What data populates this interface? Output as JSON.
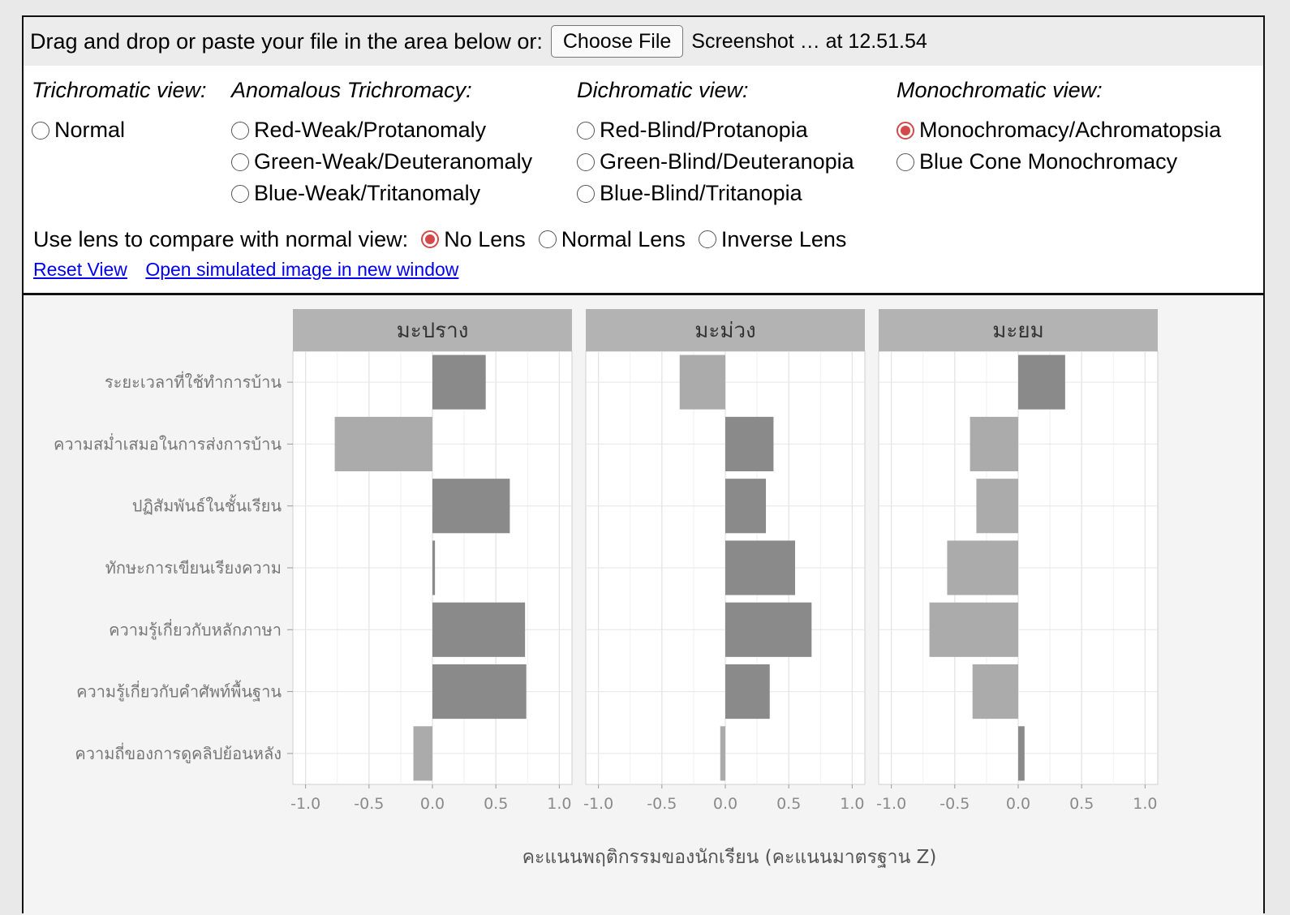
{
  "upload": {
    "prompt": "Drag and drop or paste your file in the area below or:",
    "button_label": "Choose File",
    "file_name": "Screenshot … at 12.51.54"
  },
  "views": {
    "trichromatic": {
      "title": "Trichromatic view:",
      "options": [
        "Normal"
      ]
    },
    "anomalous": {
      "title": "Anomalous Trichromacy:",
      "options": [
        "Red-Weak/Protanomaly",
        "Green-Weak/Deuteranomaly",
        "Blue-Weak/Tritanomaly"
      ]
    },
    "dichromatic": {
      "title": "Dichromatic view:",
      "options": [
        "Red-Blind/Protanopia",
        "Green-Blind/Deuteranopia",
        "Blue-Blind/Tritanopia"
      ]
    },
    "monochromatic": {
      "title": "Monochromatic view:",
      "options": [
        "Monochromacy/Achromatopsia",
        "Blue Cone Monochromacy"
      ]
    },
    "selected": "Monochromacy/Achromatopsia"
  },
  "lens": {
    "label": "Use lens to compare with normal view:",
    "options": [
      "No Lens",
      "Normal Lens",
      "Inverse Lens"
    ],
    "selected": "No Lens"
  },
  "links": {
    "reset": "Reset View",
    "open_window": "Open simulated image in new window"
  },
  "colors": {
    "radio_selected": "#d24a4a",
    "link": "#0000ee",
    "bar_positive": "#8a8a8a",
    "bar_negative": "#ababab",
    "strip": "#b3b3b3"
  },
  "chart_data": {
    "type": "bar",
    "orientation": "horizontal",
    "xlabel": "คะแนนพฤติกรรมของนักเรียน (คะแนนมาตรฐาน Z)",
    "xlim": [
      -1.1,
      1.1
    ],
    "xticks": [
      "-1.0",
      "-0.5",
      "0.0",
      "0.5",
      "1.0"
    ],
    "categories": [
      "ระยะเวลาที่ใช้ทำการบ้าน",
      "ความสม่ำเสมอในการส่งการบ้าน",
      "ปฏิสัมพันธ์ในชั้นเรียน",
      "ทักษะการเขียนเรียงความ",
      "ความรู้เกี่ยวกับหลักภาษา",
      "ความรู้เกี่ยวกับคำศัพท์พื้นฐาน",
      "ความถี่ของการดูคลิปย้อนหลัง"
    ],
    "panels": [
      {
        "name": "มะปราง",
        "values": [
          0.42,
          -0.77,
          0.61,
          0.02,
          0.73,
          0.74,
          -0.15
        ]
      },
      {
        "name": "มะม่วง",
        "values": [
          -0.36,
          0.38,
          0.32,
          0.55,
          0.68,
          0.35,
          -0.04
        ]
      },
      {
        "name": "มะยม",
        "values": [
          0.37,
          -0.38,
          -0.33,
          -0.56,
          -0.7,
          -0.36,
          0.05
        ]
      }
    ],
    "grid": true
  }
}
